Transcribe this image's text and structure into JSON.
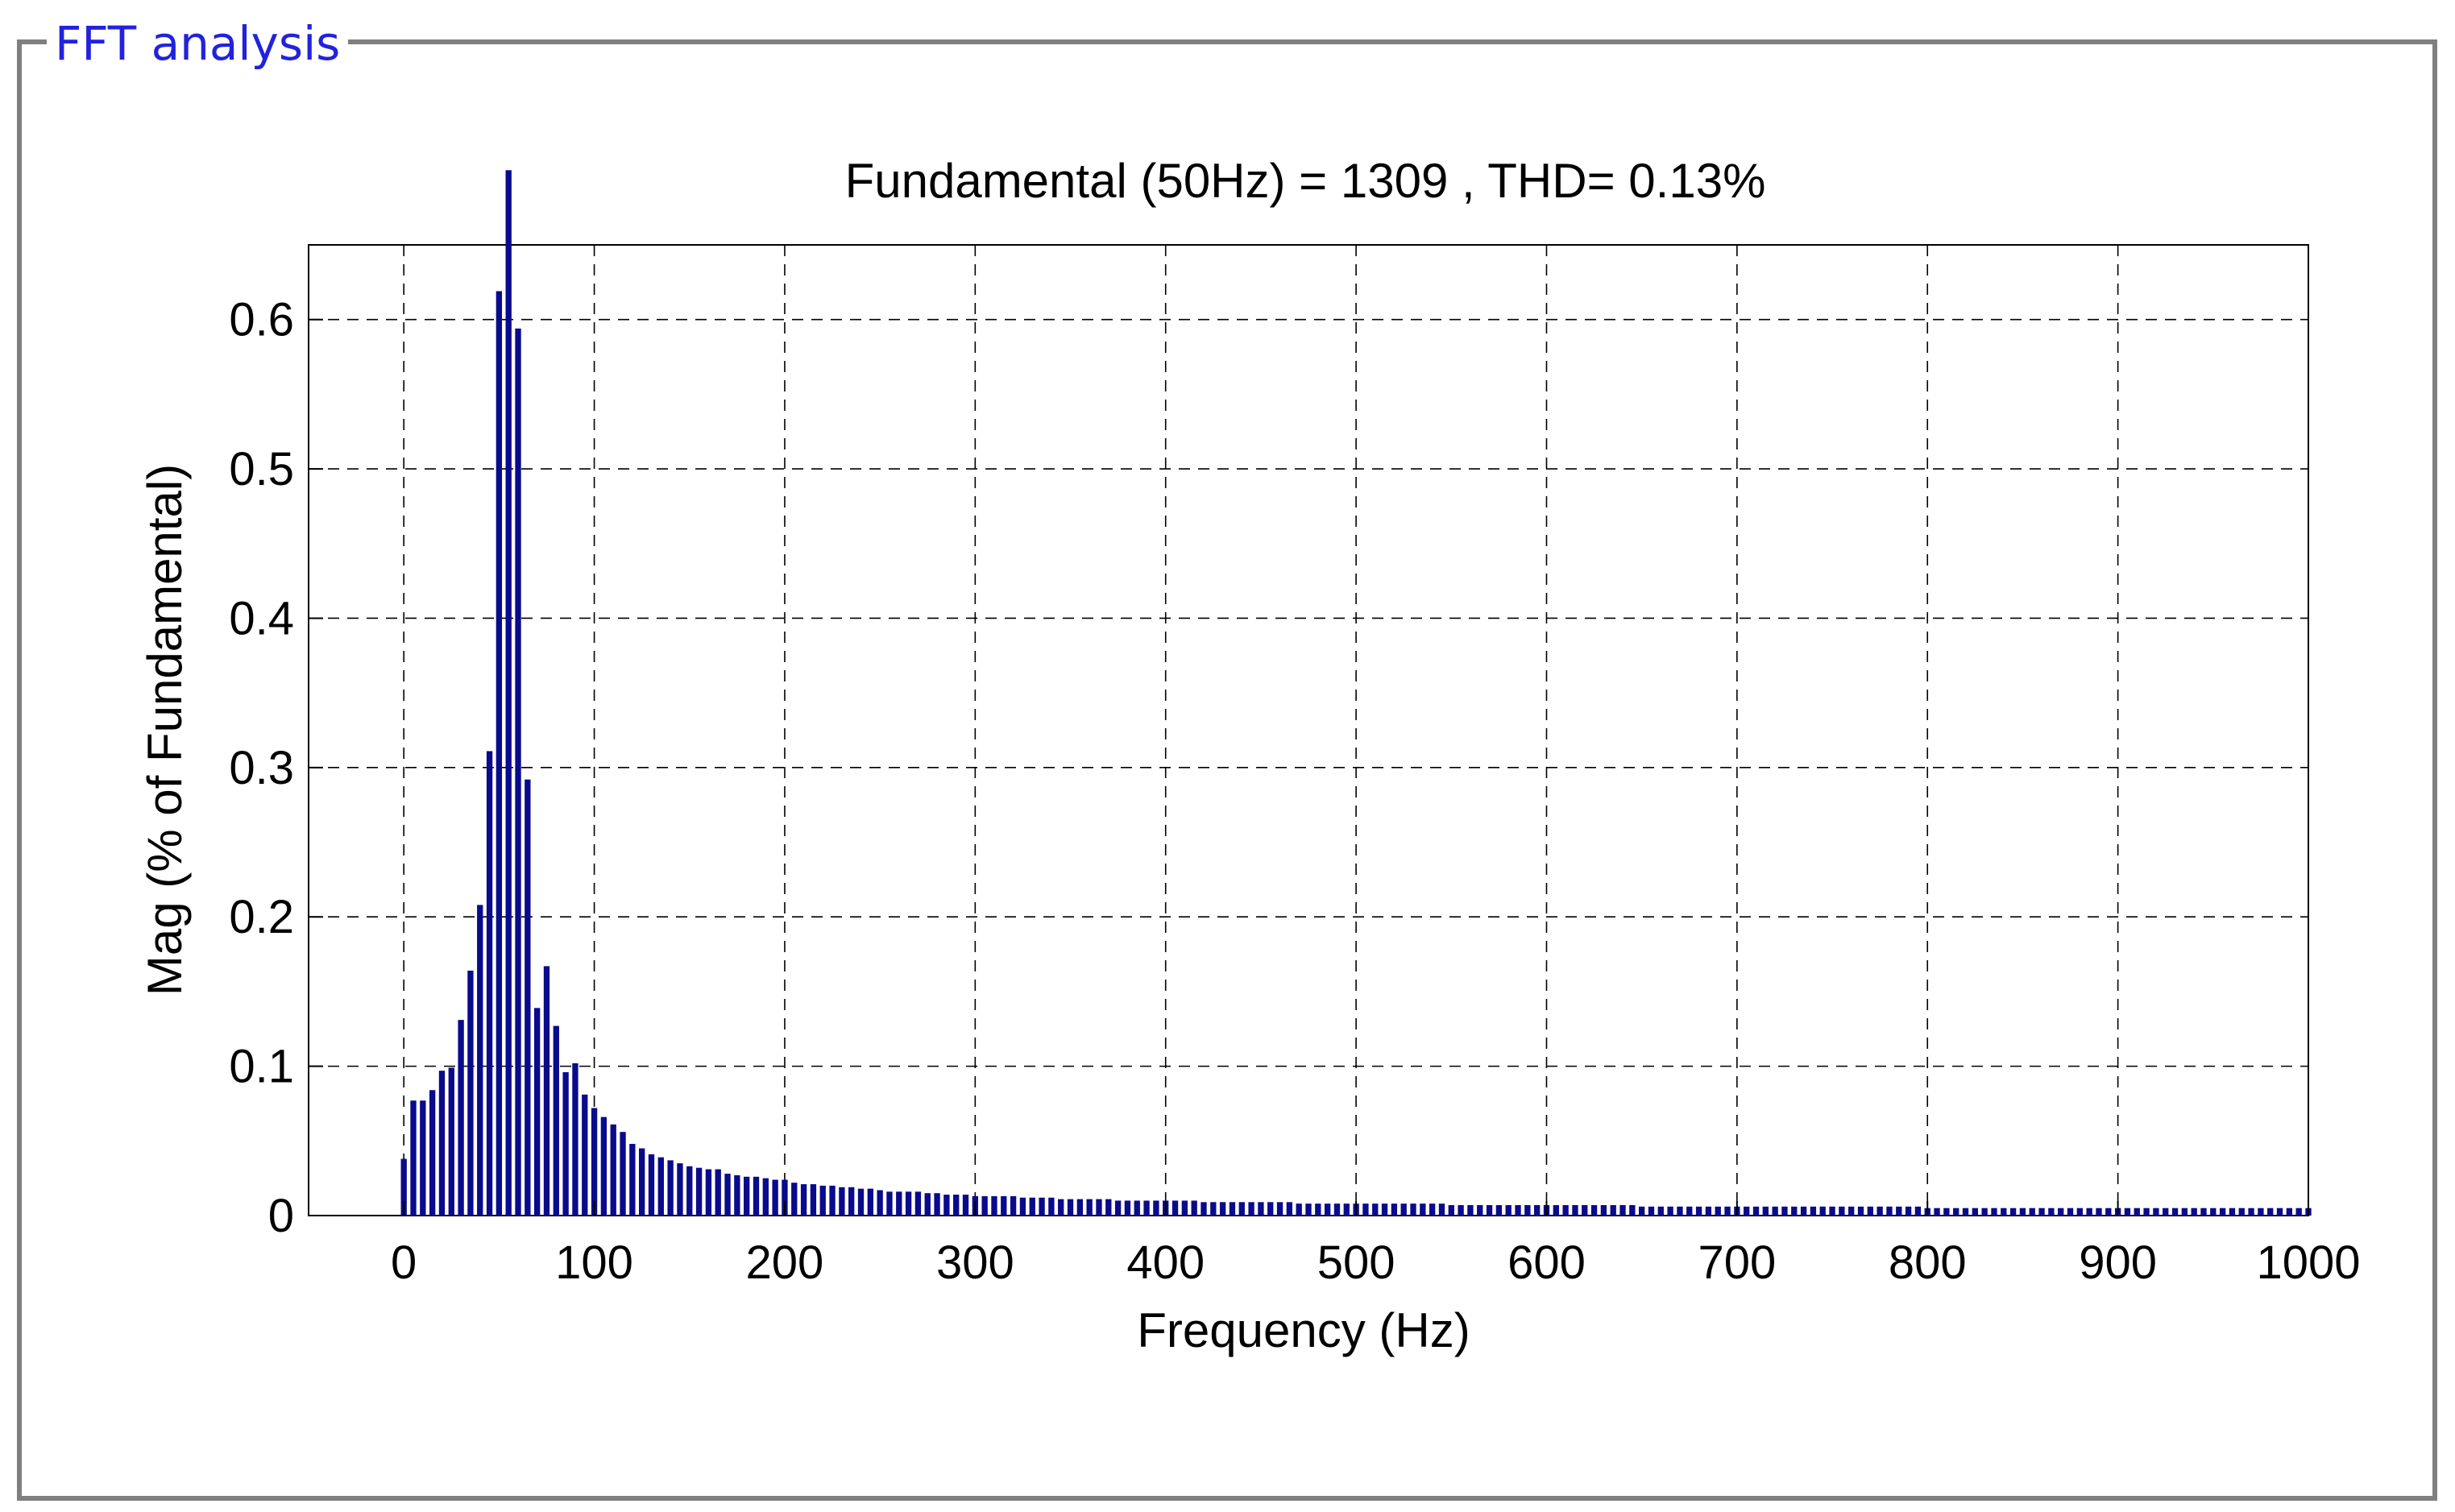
{
  "panel": {
    "title": "FFT analysis"
  },
  "colors": {
    "bar": "#0a0a8c",
    "panel_border": "#7f7f7f",
    "panel_title": "#2222dd",
    "grid": "#000000",
    "axes": "#000000"
  },
  "chart_data": {
    "type": "bar",
    "title": "Fundamental (50Hz) = 1309 , THD= 0.13%",
    "xlabel": "Frequency (Hz)",
    "ylabel": "Mag (% of Fundamental)",
    "xlim": [
      -50,
      1000
    ],
    "ylim": [
      0,
      0.65
    ],
    "xticks": [
      0,
      100,
      200,
      300,
      400,
      500,
      600,
      700,
      800,
      900,
      1000
    ],
    "xtick_labels": [
      "0",
      "100",
      "200",
      "300",
      "400",
      "500",
      "600",
      "700",
      "800",
      "900",
      "1000"
    ],
    "yticks": [
      0,
      0.1,
      0.2,
      0.3,
      0.4,
      0.5,
      0.6
    ],
    "ytick_labels": [
      "0",
      "0.1",
      "0.2",
      "0.3",
      "0.4",
      "0.5",
      "0.6"
    ],
    "grid": true,
    "bar_spacing_hz": 5,
    "fundamental_hz": 50,
    "fundamental_bar_clipped": true,
    "x": [
      0,
      5,
      10,
      15,
      20,
      25,
      30,
      35,
      40,
      45,
      50,
      55,
      60,
      65,
      70,
      75,
      80,
      85,
      90,
      95,
      100,
      105,
      110,
      115,
      120,
      125,
      130,
      135,
      140,
      145,
      150,
      155,
      160,
      165,
      170,
      175,
      180,
      185,
      190,
      195,
      200,
      205,
      210,
      215,
      220,
      225,
      230,
      235,
      240,
      245,
      250,
      255,
      260,
      265,
      270,
      275,
      280,
      285,
      290,
      295,
      300,
      305,
      310,
      315,
      320,
      325,
      330,
      335,
      340,
      345,
      350,
      355,
      360,
      365,
      370,
      375,
      380,
      385,
      390,
      395,
      400,
      405,
      410,
      415,
      420,
      425,
      430,
      435,
      440,
      445,
      450,
      455,
      460,
      465,
      470,
      475,
      480,
      485,
      490,
      495,
      500,
      505,
      510,
      515,
      520,
      525,
      530,
      535,
      540,
      545,
      550,
      555,
      560,
      565,
      570,
      575,
      580,
      585,
      590,
      595,
      600,
      605,
      610,
      615,
      620,
      625,
      630,
      635,
      640,
      645,
      650,
      655,
      660,
      665,
      670,
      675,
      680,
      685,
      690,
      695,
      700,
      705,
      710,
      715,
      720,
      725,
      730,
      735,
      740,
      745,
      750,
      755,
      760,
      765,
      770,
      775,
      780,
      785,
      790,
      795,
      800,
      805,
      810,
      815,
      820,
      825,
      830,
      835,
      840,
      845,
      850,
      855,
      860,
      865,
      870,
      875,
      880,
      885,
      890,
      895,
      900,
      905,
      910,
      915,
      920,
      925,
      930,
      935,
      940,
      945,
      950,
      955,
      960,
      965,
      970,
      975,
      980,
      985,
      990,
      995,
      1000
    ],
    "values": [
      0.038,
      0.077,
      0.077,
      0.084,
      0.097,
      0.099,
      0.131,
      0.164,
      0.208,
      0.311,
      0.619,
      0.7,
      0.594,
      0.292,
      0.139,
      0.167,
      0.127,
      0.096,
      0.102,
      0.081,
      0.072,
      0.066,
      0.061,
      0.056,
      0.048,
      0.045,
      0.041,
      0.039,
      0.037,
      0.035,
      0.033,
      0.032,
      0.031,
      0.031,
      0.028,
      0.027,
      0.026,
      0.026,
      0.025,
      0.024,
      0.024,
      0.022,
      0.021,
      0.021,
      0.02,
      0.02,
      0.019,
      0.019,
      0.018,
      0.018,
      0.017,
      0.016,
      0.016,
      0.016,
      0.016,
      0.015,
      0.015,
      0.014,
      0.014,
      0.014,
      0.013,
      0.013,
      0.013,
      0.013,
      0.013,
      0.012,
      0.012,
      0.012,
      0.012,
      0.011,
      0.011,
      0.011,
      0.011,
      0.011,
      0.011,
      0.01,
      0.01,
      0.01,
      0.01,
      0.01,
      0.01,
      0.01,
      0.01,
      0.01,
      0.009,
      0.009,
      0.009,
      0.009,
      0.009,
      0.009,
      0.009,
      0.009,
      0.009,
      0.009,
      0.008,
      0.008,
      0.008,
      0.008,
      0.008,
      0.008,
      0.008,
      0.008,
      0.008,
      0.008,
      0.008,
      0.008,
      0.008,
      0.008,
      0.008,
      0.008,
      0.007,
      0.007,
      0.007,
      0.007,
      0.007,
      0.007,
      0.007,
      0.007,
      0.007,
      0.007,
      0.007,
      0.007,
      0.007,
      0.007,
      0.007,
      0.007,
      0.007,
      0.007,
      0.007,
      0.007,
      0.006,
      0.006,
      0.006,
      0.006,
      0.006,
      0.006,
      0.006,
      0.006,
      0.006,
      0.006,
      0.006,
      0.006,
      0.006,
      0.006,
      0.006,
      0.006,
      0.006,
      0.006,
      0.006,
      0.006,
      0.006,
      0.006,
      0.006,
      0.006,
      0.006,
      0.006,
      0.006,
      0.006,
      0.006,
      0.006,
      0.005,
      0.005,
      0.005,
      0.005,
      0.005,
      0.005,
      0.005,
      0.005,
      0.005,
      0.005,
      0.005,
      0.005,
      0.005,
      0.005,
      0.005,
      0.005,
      0.005,
      0.005,
      0.005,
      0.005,
      0.005,
      0.005,
      0.005,
      0.005,
      0.005,
      0.005,
      0.005,
      0.005,
      0.005,
      0.005,
      0.005,
      0.005,
      0.005,
      0.005,
      0.005,
      0.005,
      0.005,
      0.005,
      0.005,
      0.005,
      0.005
    ]
  }
}
